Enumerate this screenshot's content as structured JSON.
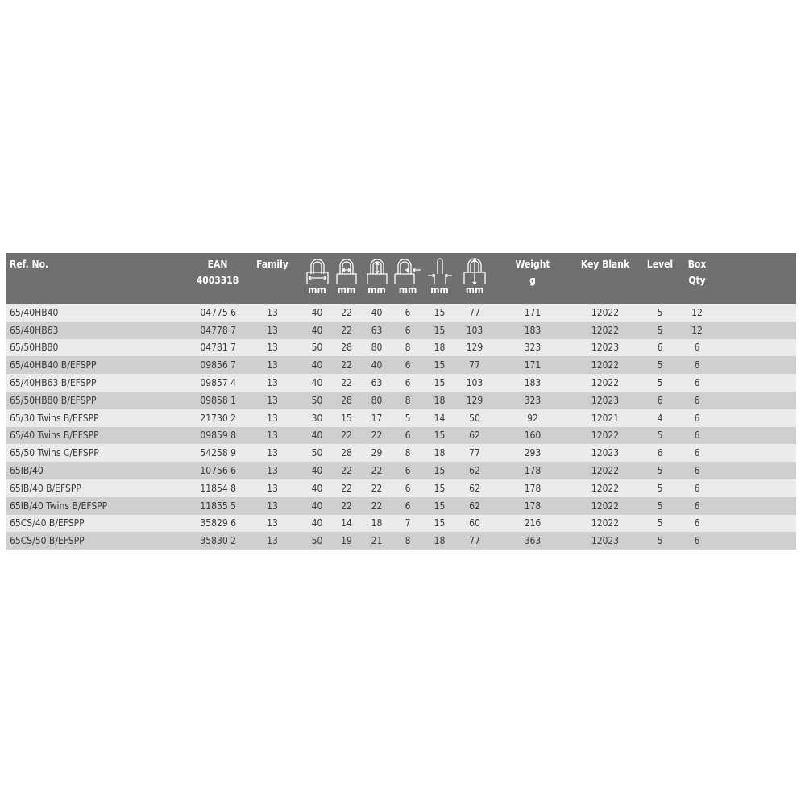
{
  "header": {
    "ref": "Ref. No.",
    "ean": [
      "EAN",
      "4003318"
    ],
    "family": "Family",
    "dimension_icons": [
      "shackle-width-icon",
      "inner-shackle-width-icon",
      "shackle-height-icon",
      "shackle-thickness-icon",
      "body-thickness-icon",
      "overall-height-icon"
    ],
    "unit_mm": "mm",
    "weight": [
      "Weight",
      "g"
    ],
    "key_blank": "Key Blank",
    "level": "Level",
    "box": [
      "Box",
      "Qty"
    ]
  },
  "rows": [
    [
      "65/40HB40",
      "04775 6",
      "13",
      "40",
      "22",
      "40",
      "6",
      "15",
      "77",
      "171",
      "12022",
      "5",
      "12"
    ],
    [
      "65/40HB63",
      "04778 7",
      "13",
      "40",
      "22",
      "63",
      "6",
      "15",
      "103",
      "183",
      "12022",
      "5",
      "12"
    ],
    [
      "65/50HB80",
      "04781 7",
      "13",
      "50",
      "28",
      "80",
      "8",
      "18",
      "129",
      "323",
      "12023",
      "6",
      "6"
    ],
    [
      "65/40HB40 B/EFSPP",
      "09856 7",
      "13",
      "40",
      "22",
      "40",
      "6",
      "15",
      "77",
      "171",
      "12022",
      "5",
      "6"
    ],
    [
      "65/40HB63 B/EFSPP",
      "09857 4",
      "13",
      "40",
      "22",
      "63",
      "6",
      "15",
      "103",
      "183",
      "12022",
      "5",
      "6"
    ],
    [
      "65/50HB80 B/EFSPP",
      "09858 1",
      "13",
      "50",
      "28",
      "80",
      "8",
      "18",
      "129",
      "323",
      "12023",
      "6",
      "6"
    ],
    [
      "65/30 Twins B/EFSPP",
      "21730 2",
      "13",
      "30",
      "15",
      "17",
      "5",
      "14",
      "50",
      "92",
      "12021",
      "4",
      "6"
    ],
    [
      "65/40 Twins B/EFSPP",
      "09859 8",
      "13",
      "40",
      "22",
      "22",
      "6",
      "15",
      "62",
      "160",
      "12022",
      "5",
      "6"
    ],
    [
      "65/50 Twins C/EFSPP",
      "54258 9",
      "13",
      "50",
      "28",
      "29",
      "8",
      "18",
      "77",
      "293",
      "12023",
      "6",
      "6"
    ],
    [
      "65IB/40",
      "10756 6",
      "13",
      "40",
      "22",
      "22",
      "6",
      "15",
      "62",
      "178",
      "12022",
      "5",
      "6"
    ],
    [
      "65IB/40 B/EFSPP",
      "11854 8",
      "13",
      "40",
      "22",
      "22",
      "6",
      "15",
      "62",
      "178",
      "12022",
      "5",
      "6"
    ],
    [
      "65IB/40 Twins B/EFSPP",
      "11855 5",
      "13",
      "40",
      "22",
      "22",
      "6",
      "15",
      "62",
      "178",
      "12022",
      "5",
      "6"
    ],
    [
      "65CS/40 B/EFSPP",
      "35829 6",
      "13",
      "40",
      "14",
      "18",
      "7",
      "15",
      "60",
      "216",
      "12022",
      "5",
      "6"
    ],
    [
      "65CS/50 B/EFSPP",
      "35830 2",
      "13",
      "50",
      "19",
      "21",
      "8",
      "18",
      "77",
      "363",
      "12023",
      "5",
      "6"
    ]
  ],
  "colors": {
    "header_bg": "#707070",
    "row_light": "#ebebeb",
    "row_dark": "#cfcfcf"
  }
}
